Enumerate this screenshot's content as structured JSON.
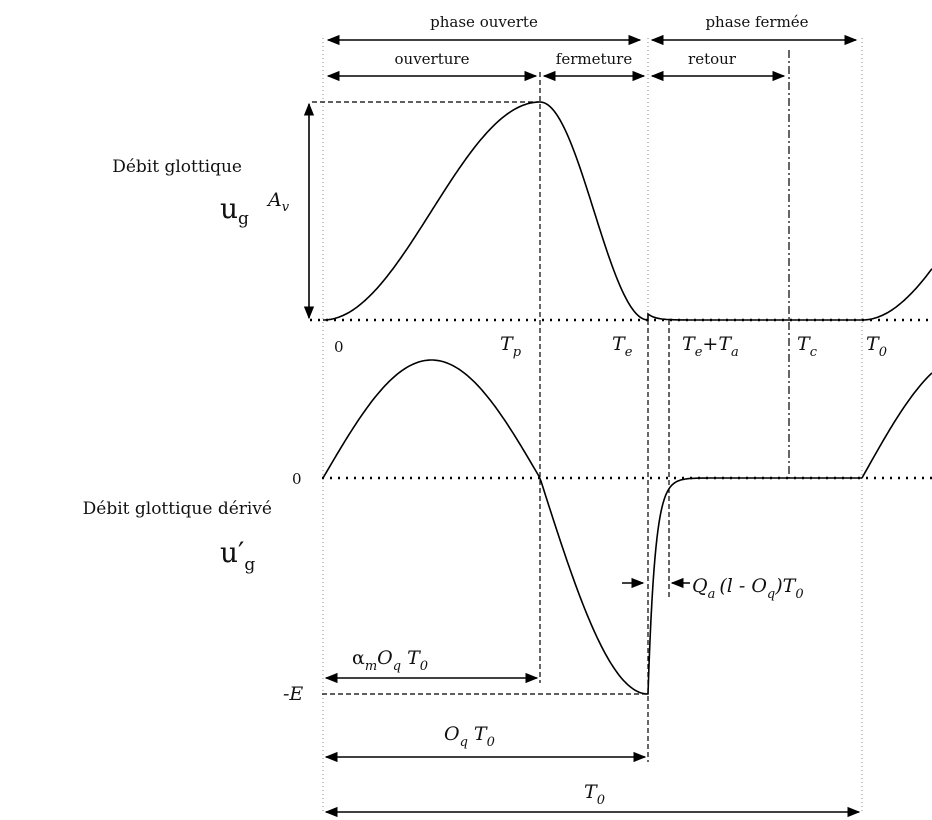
{
  "phases": {
    "open": "phase ouverte",
    "closed": "phase fermée",
    "opening": "ouverture",
    "closing": "fermeture",
    "return": "retour"
  },
  "flow": {
    "label": "Débit glottique",
    "symbol_base": "u",
    "symbol_sub": "g",
    "amplitude": "A",
    "amplitude_sub": "v"
  },
  "derivative": {
    "label": "Débit glottique dérivé",
    "symbol_base": "u′",
    "symbol_sub": "g",
    "zero": "0",
    "min_label": "-E"
  },
  "time_marks": {
    "zero": "0",
    "tp": "T",
    "tp_sub": "p",
    "te": "T",
    "te_sub": "e",
    "tea_a": "T",
    "tea_a_sub": "e",
    "tea_plus": "+",
    "tea_b": "T",
    "tea_b_sub": "a",
    "tc": "T",
    "tc_sub": "c",
    "t0": "T",
    "t0_sub": "0"
  },
  "durations": {
    "alpha_a": "α",
    "alpha_a_sub": "m",
    "alpha_o": "O",
    "alpha_o_sub": "q",
    "alpha_t": "T",
    "alpha_t_sub": "0",
    "oq_o": "O",
    "oq_o_sub": "q",
    "oq_t": "T",
    "oq_t_sub": "0",
    "qa_q": "Q",
    "qa_q_sub": "a",
    "qa_mid": "(l - O",
    "qa_mid_sub": "q",
    "qa_end": ")T",
    "qa_end_sub": "0",
    "period": "T",
    "period_sub": "0"
  }
}
